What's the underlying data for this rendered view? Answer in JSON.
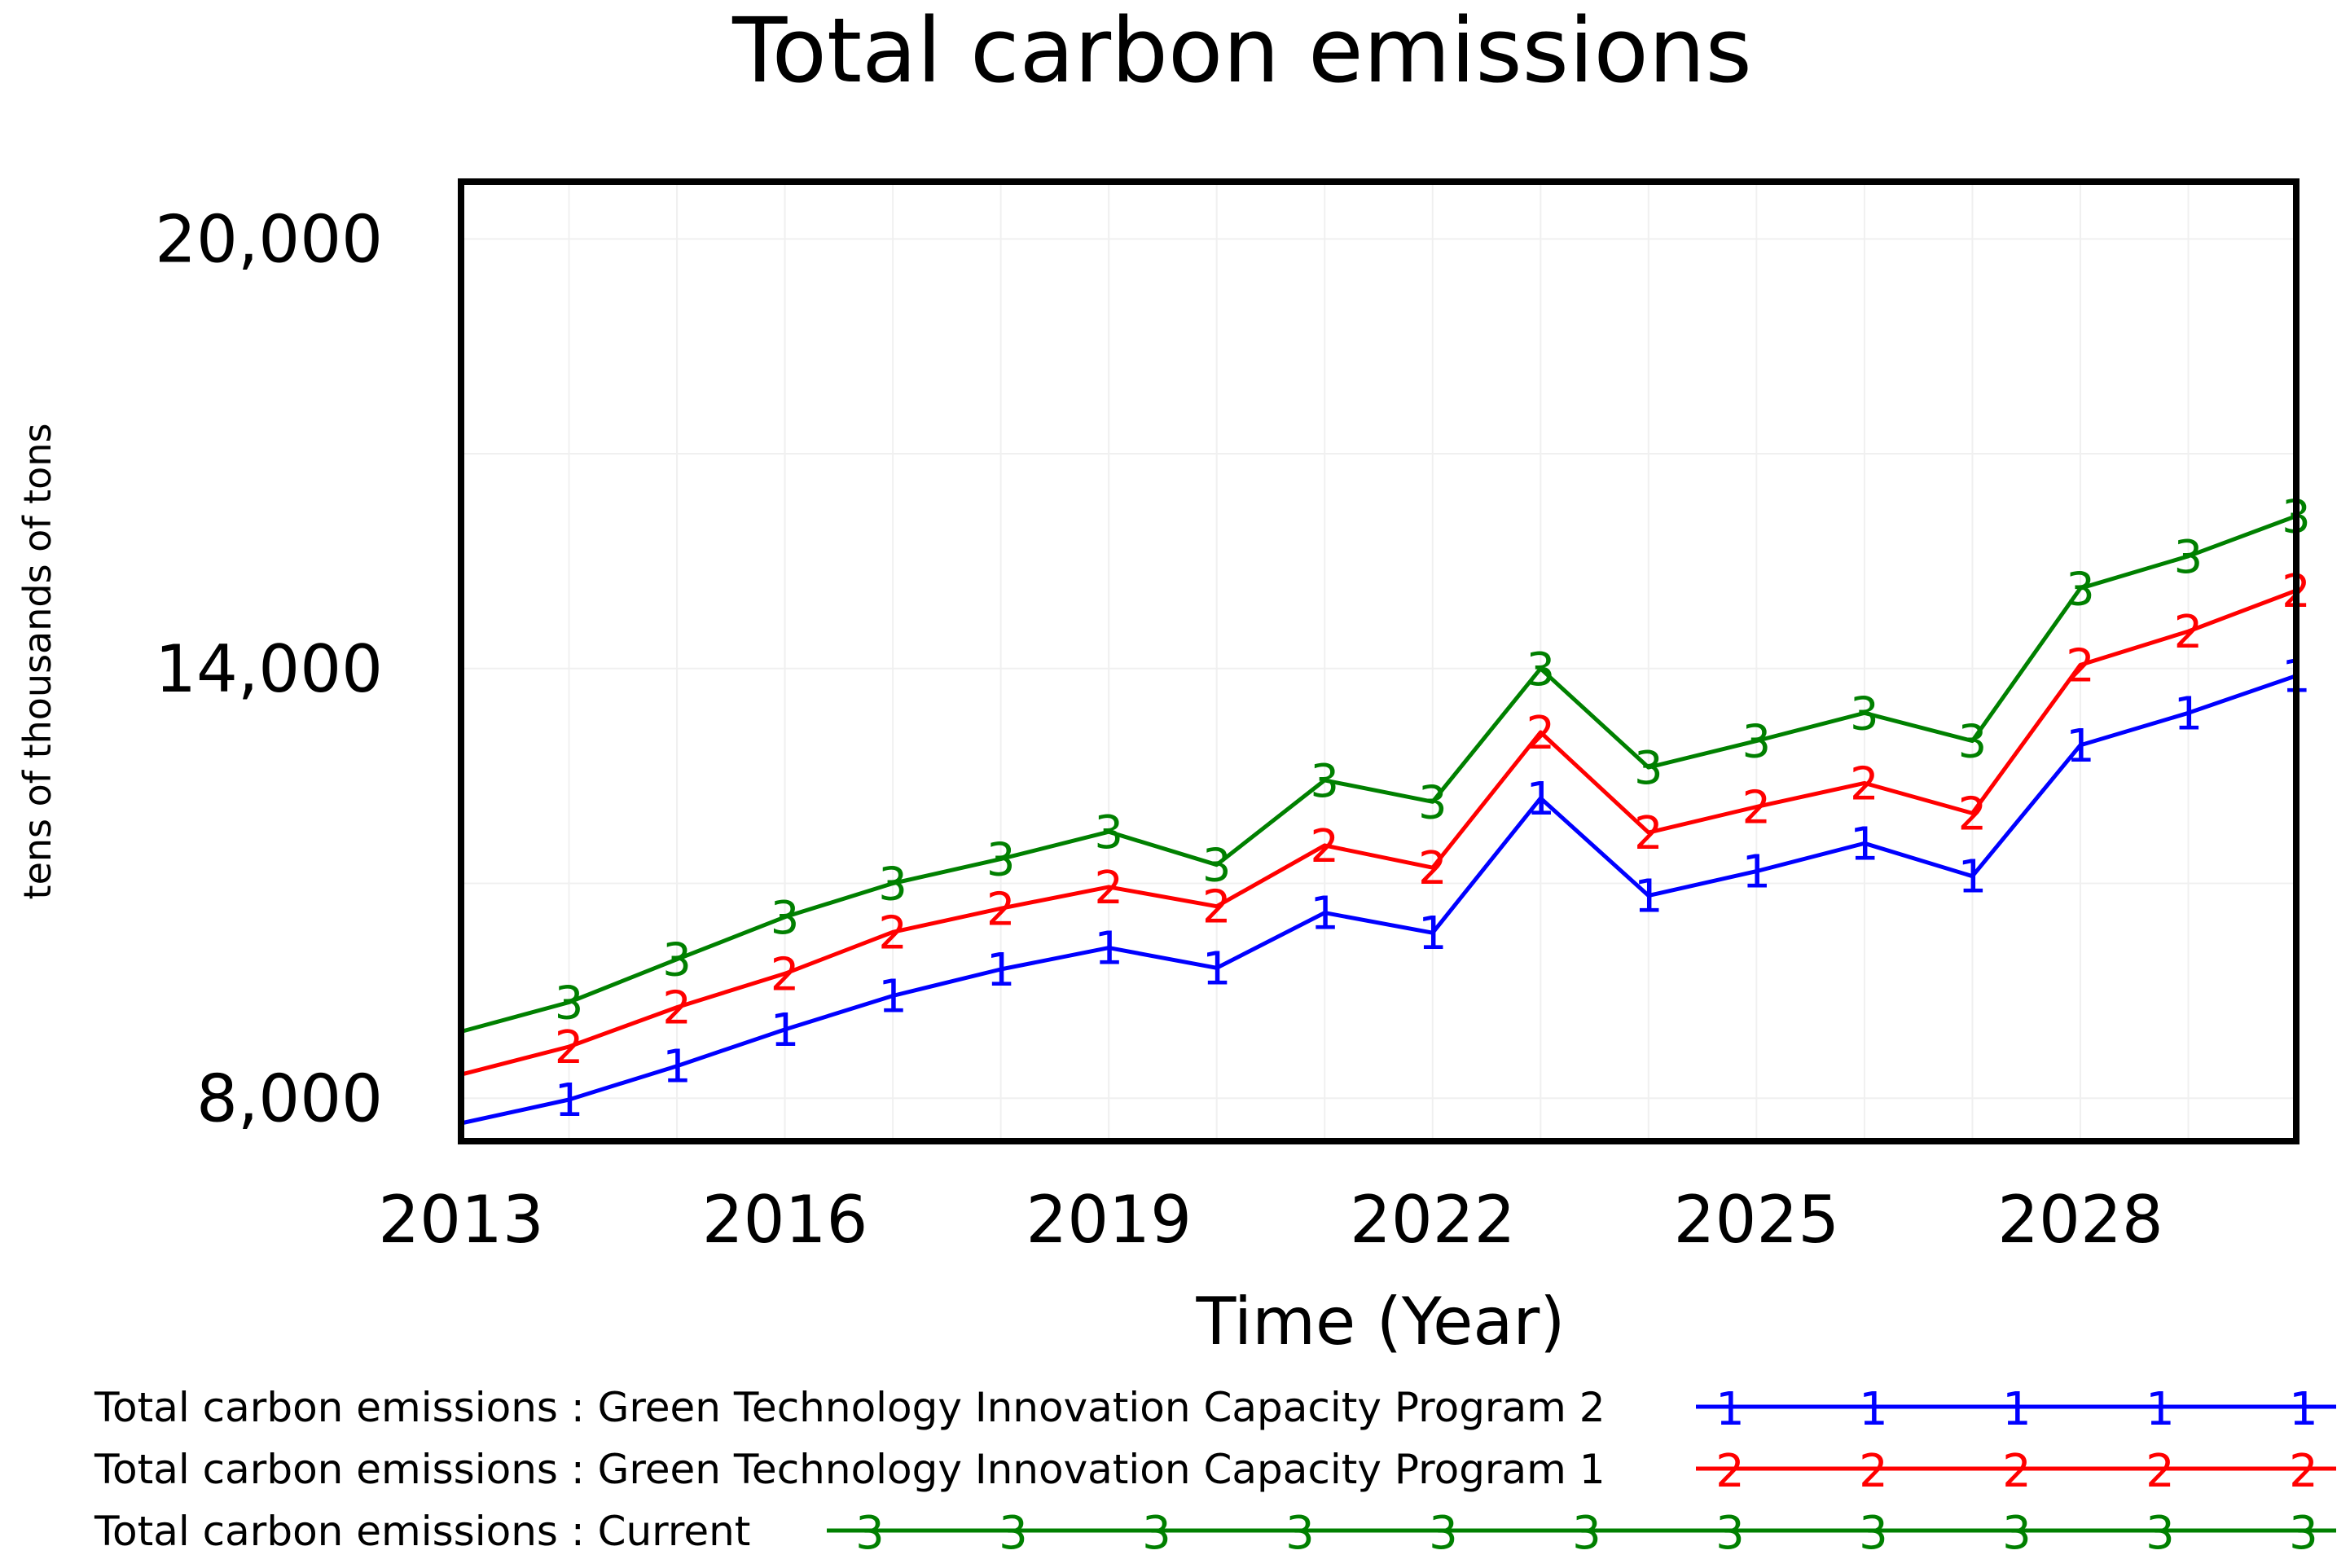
{
  "chart_data": {
    "type": "line",
    "title": "Total carbon emissions",
    "xlabel": "Time (Year)",
    "ylabel": "tens of thousands of tons",
    "xlim": [
      2013,
      2030
    ],
    "ylim": [
      7400,
      20800
    ],
    "x_ticks": [
      "2013",
      "2016",
      "2019",
      "2022",
      "2025",
      "2028"
    ],
    "y_ticks": [
      "20,000",
      "14,000",
      "8,000"
    ],
    "x": [
      2013,
      2014,
      2015,
      2016,
      2017,
      2018,
      2019,
      2020,
      2021,
      2022,
      2023,
      2024,
      2025,
      2026,
      2027,
      2028,
      2029,
      2030
    ],
    "series": [
      {
        "name": "Total carbon emissions : Green Technology Innovation Capacity Program 2",
        "marker": "1",
        "color": "#0000ff",
        "values": [
          7650,
          7980,
          8450,
          8960,
          9430,
          9800,
          10100,
          9820,
          10590,
          10310,
          12190,
          10830,
          11170,
          11560,
          11100,
          12930,
          13380,
          13900
        ]
      },
      {
        "name": "Total carbon emissions : Green Technology Innovation Capacity Program 1",
        "marker": "2",
        "color": "#ff0000",
        "values": [
          8330,
          8720,
          9270,
          9740,
          10320,
          10650,
          10950,
          10680,
          11530,
          11220,
          13110,
          11710,
          12070,
          12400,
          11980,
          14050,
          14520,
          15090
        ]
      },
      {
        "name": "Total carbon emissions : Current",
        "marker": "3",
        "color": "#008000",
        "values": [
          8930,
          9340,
          9940,
          10530,
          11000,
          11340,
          11720,
          11260,
          12440,
          12140,
          14000,
          12620,
          12990,
          13380,
          12990,
          15120,
          15570,
          16130
        ]
      }
    ],
    "legend_position": "bottom"
  }
}
